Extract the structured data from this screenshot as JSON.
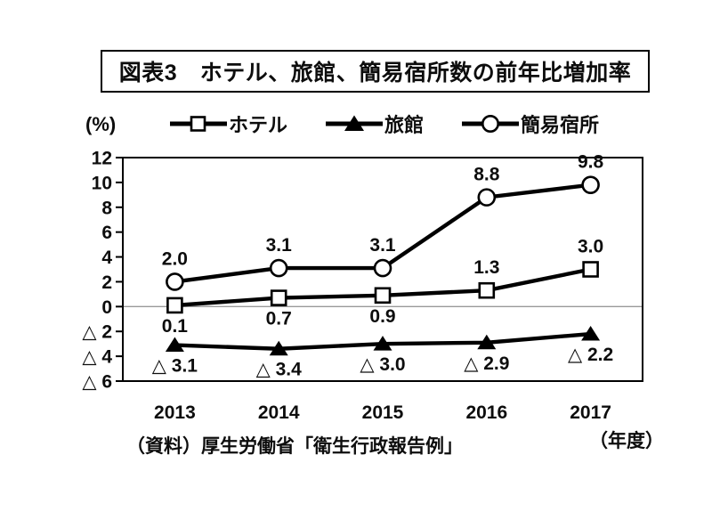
{
  "source": "（資料）厚生労働省「衛生行政報告例」",
  "chart_data": {
    "type": "line",
    "title": "図表3　ホテル、旅館、簡易宿所数の前年比増加率",
    "y_unit_label": "(%)",
    "x_unit_label": "（年度）",
    "categories": [
      "2013",
      "2014",
      "2015",
      "2016",
      "2017"
    ],
    "ylim": [
      -6,
      12
    ],
    "ytick_step": 2,
    "ytick_labels": [
      "12",
      "10",
      "8",
      "6",
      "4",
      "2",
      "0",
      "△ 2",
      "△ 4",
      "△ 6"
    ],
    "grid": "zero-line-only",
    "legend_position": "top",
    "line_color": "#000000",
    "zero_line_color": "#9a9a9a",
    "series": [
      {
        "name": "ホテル",
        "marker": "square",
        "values": [
          0.1,
          0.7,
          0.9,
          1.3,
          3.0
        ],
        "point_labels": [
          "0.1",
          "0.7",
          "0.9",
          "1.3",
          "3.0"
        ],
        "label_side": [
          "below",
          "below",
          "below",
          "above",
          "above"
        ]
      },
      {
        "name": "旅館",
        "marker": "triangle-filled",
        "values": [
          -3.1,
          -3.4,
          -3.0,
          -2.9,
          -2.2
        ],
        "point_labels": [
          "△ 3.1",
          "△ 3.4",
          "△ 3.0",
          "△ 2.9",
          "△ 2.2"
        ],
        "label_side": [
          "below",
          "below",
          "below",
          "below",
          "below"
        ]
      },
      {
        "name": "簡易宿所",
        "marker": "circle",
        "values": [
          2.0,
          3.1,
          3.1,
          8.8,
          9.8
        ],
        "point_labels": [
          "2.0",
          "3.1",
          "3.1",
          "8.8",
          "9.8"
        ],
        "label_side": [
          "above",
          "above",
          "above",
          "above",
          "above"
        ]
      }
    ]
  }
}
